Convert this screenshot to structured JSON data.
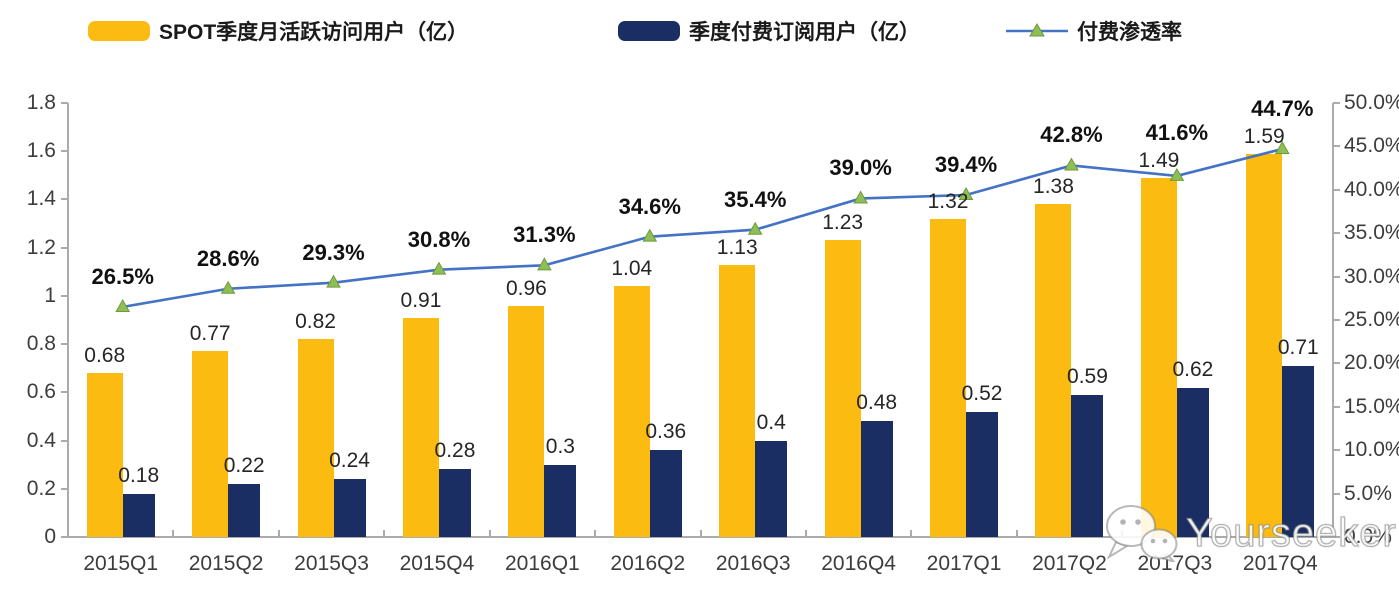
{
  "legend": {
    "items": [
      {
        "label": "SPOT季度月活跃访问用户（亿）",
        "swatch": "bar",
        "color": "#FBBB10"
      },
      {
        "label": "季度付费订阅用户（亿）",
        "swatch": "bar",
        "color": "#1A2E63"
      },
      {
        "label": "付费渗透率",
        "swatch": "line-triangle",
        "line_color": "#4472C4",
        "marker_color": "#8FBE56",
        "marker_edge": "#6E9A3C"
      }
    ]
  },
  "watermark": {
    "text": "Yourseeker",
    "icon": "wechat-icon"
  },
  "chart_data": {
    "type": "bar",
    "combo": "dual-axis bar + line",
    "legend_position": "top",
    "grid": "off",
    "categories": [
      "2015Q1",
      "2015Q2",
      "2015Q3",
      "2015Q4",
      "2016Q1",
      "2016Q2",
      "2016Q3",
      "2016Q4",
      "2017Q1",
      "2017Q2",
      "2017Q3",
      "2017Q4"
    ],
    "series": [
      {
        "name": "SPOT季度月活跃访问用户（亿）",
        "type": "bar",
        "axis": "left",
        "color": "#FBBB10",
        "values": [
          0.68,
          0.77,
          0.82,
          0.91,
          0.96,
          1.04,
          1.13,
          1.23,
          1.32,
          1.38,
          1.49,
          1.59
        ],
        "labels": [
          "0.68",
          "0.77",
          "0.82",
          "0.91",
          "0.96",
          "1.04",
          "1.13",
          "1.23",
          "1.32",
          "1.38",
          "1.49",
          "1.59"
        ]
      },
      {
        "name": "季度付费订阅用户（亿）",
        "type": "bar",
        "axis": "left",
        "color": "#1A2E63",
        "values": [
          0.18,
          0.22,
          0.24,
          0.28,
          0.3,
          0.36,
          0.4,
          0.48,
          0.52,
          0.59,
          0.62,
          0.71
        ],
        "labels": [
          "0.18",
          "0.22",
          "0.24",
          "0.28",
          "0.3",
          "0.36",
          "0.4",
          "0.48",
          "0.52",
          "0.59",
          "0.62",
          "0.71"
        ]
      },
      {
        "name": "付费渗透率",
        "type": "line",
        "axis": "right",
        "color": "#4472C4",
        "marker": "triangle",
        "marker_color": "#8FBE56",
        "marker_edge": "#6E9A3C",
        "values": [
          26.5,
          28.6,
          29.3,
          30.8,
          31.3,
          34.6,
          35.4,
          39.0,
          39.4,
          42.8,
          41.6,
          44.7
        ],
        "labels": [
          "26.5%",
          "28.6%",
          "29.3%",
          "30.8%",
          "31.3%",
          "34.6%",
          "35.4%",
          "39.0%",
          "39.4%",
          "42.8%",
          "41.6%",
          "44.7%"
        ]
      }
    ],
    "left_axis": {
      "min": 0,
      "max": 1.8,
      "step": 0.2,
      "tick_labels": [
        "0",
        "0.2",
        "0.4",
        "0.6",
        "0.8",
        "1",
        "1.2",
        "1.4",
        "1.6",
        "1.8"
      ]
    },
    "right_axis": {
      "min": 0,
      "max": 50,
      "step": 5,
      "unit": "%",
      "tick_labels": [
        "0.0%",
        "5.0%",
        "10.0%",
        "15.0%",
        "20.0%",
        "25.0%",
        "30.0%",
        "35.0%",
        "40.0%",
        "45.0%",
        "50.0%"
      ]
    }
  }
}
